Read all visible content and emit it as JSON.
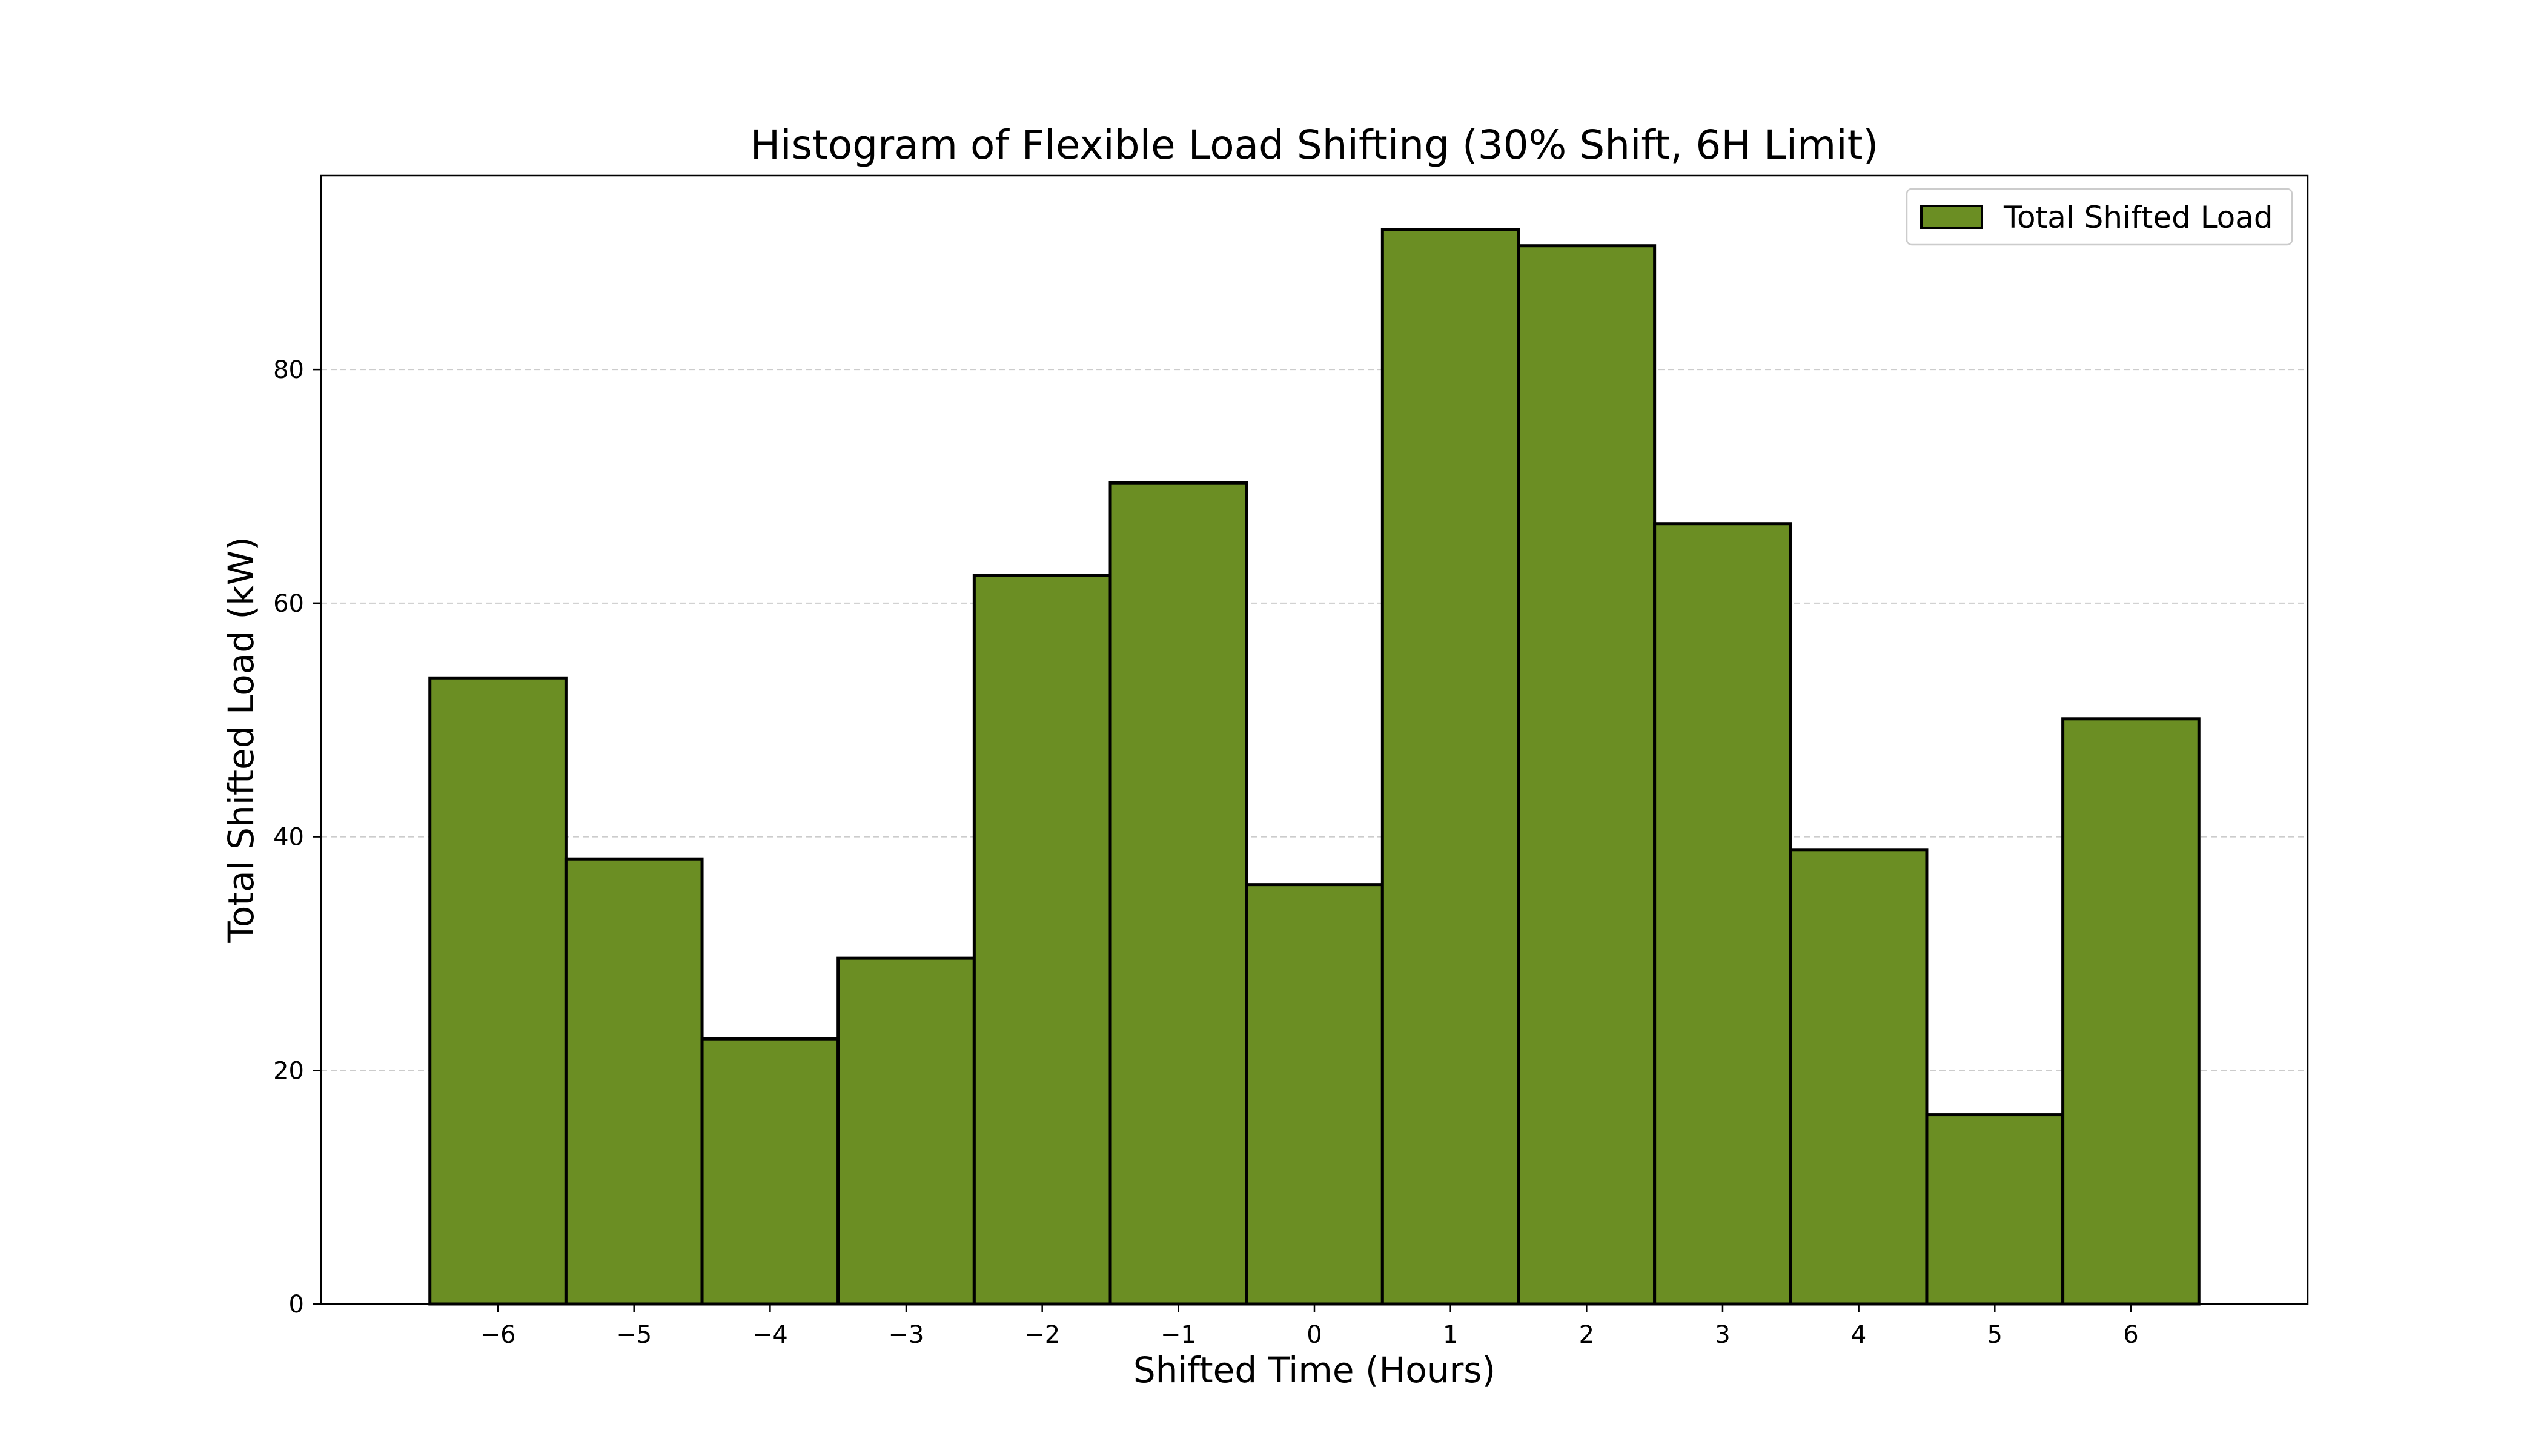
{
  "chart_data": {
    "type": "bar",
    "title": "Histogram of Flexible Load Shifting (30% Shift, 6H Limit)",
    "xlabel": "Shifted Time (Hours)",
    "ylabel": "Total Shifted Load (kW)",
    "categories": [
      "−6",
      "−5",
      "−4",
      "−3",
      "−2",
      "−1",
      "0",
      "1",
      "2",
      "3",
      "4",
      "5",
      "6"
    ],
    "x": [
      -6,
      -5,
      -4,
      -3,
      -2,
      -1,
      0,
      1,
      2,
      3,
      4,
      5,
      6
    ],
    "series": [
      {
        "name": "Total Shifted Load",
        "values": [
          53.6,
          38.1,
          22.7,
          29.6,
          62.4,
          70.3,
          35.9,
          92.0,
          90.6,
          66.8,
          38.9,
          16.2,
          50.1
        ],
        "color": "#6b8e23"
      }
    ],
    "xlim": [
      -7.3,
      7.3
    ],
    "ylim": [
      0,
      96.6
    ],
    "yticks": [
      0,
      20,
      40,
      60,
      80
    ],
    "ytick_labels": [
      "0",
      "20",
      "40",
      "60",
      "80"
    ],
    "grid": {
      "axis": "y",
      "style": "dashed",
      "color": "#cccccc"
    },
    "legend": {
      "position": "top-right",
      "entries": [
        "Total Shifted Load"
      ]
    },
    "edge_color": "#000000"
  }
}
